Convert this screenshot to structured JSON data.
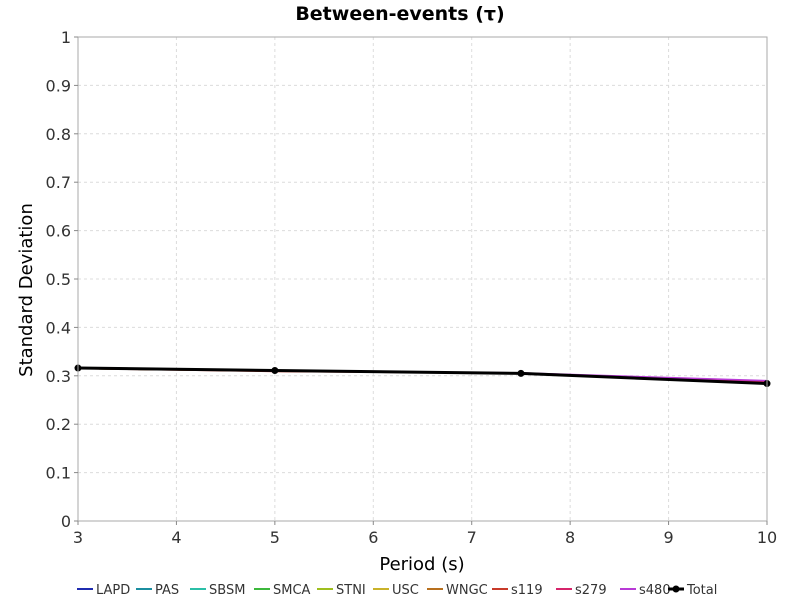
{
  "chart_data": {
    "type": "line",
    "title": "Between-events (τ)",
    "xlabel": "Period (s)",
    "ylabel": "Standard Deviation",
    "xlim": [
      3,
      10
    ],
    "ylim": [
      0,
      1
    ],
    "xticks": [
      "3",
      "4",
      "5",
      "6",
      "7",
      "8",
      "9",
      "10"
    ],
    "yticks": [
      "0",
      "0.1",
      "0.2",
      "0.3",
      "0.4",
      "0.5",
      "0.6",
      "0.7",
      "0.8",
      "0.9",
      "1"
    ],
    "grid": true,
    "legend_position": "bottom",
    "x": [
      3,
      5,
      7.5,
      10
    ],
    "series": [
      {
        "name": "LAPD",
        "color": "#1f2cb0",
        "values": [
          0.315,
          0.31,
          0.305,
          0.287
        ]
      },
      {
        "name": "PAS",
        "color": "#1b8ea0",
        "values": [
          0.315,
          0.31,
          0.305,
          0.287
        ]
      },
      {
        "name": "SBSM",
        "color": "#2bbfa7",
        "values": [
          0.315,
          0.31,
          0.305,
          0.287
        ]
      },
      {
        "name": "SMCA",
        "color": "#3cb83c",
        "values": [
          0.315,
          0.31,
          0.305,
          0.287
        ]
      },
      {
        "name": "STNI",
        "color": "#9fbf1e",
        "values": [
          0.315,
          0.31,
          0.305,
          0.287
        ]
      },
      {
        "name": "USC",
        "color": "#c9b22a",
        "values": [
          0.315,
          0.31,
          0.305,
          0.287
        ]
      },
      {
        "name": "WNGC",
        "color": "#b8701e",
        "values": [
          0.315,
          0.31,
          0.305,
          0.287
        ]
      },
      {
        "name": "s119",
        "color": "#c83a2a",
        "values": [
          0.315,
          0.309,
          0.305,
          0.288
        ]
      },
      {
        "name": "s279",
        "color": "#d6246a",
        "values": [
          0.316,
          0.31,
          0.305,
          0.289
        ]
      },
      {
        "name": "s480",
        "color": "#b83ad6",
        "values": [
          0.316,
          0.31,
          0.306,
          0.29
        ]
      },
      {
        "name": "Total",
        "color": "#000000",
        "values": [
          0.316,
          0.311,
          0.305,
          0.284
        ],
        "markers": true
      }
    ]
  }
}
